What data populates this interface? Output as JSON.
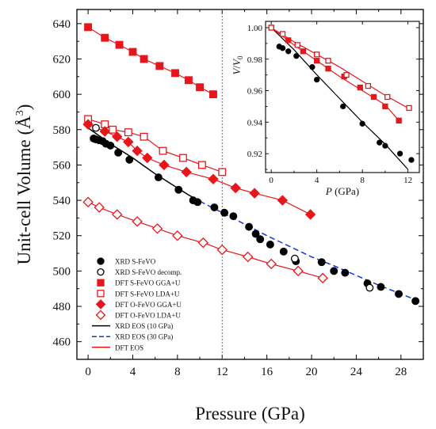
{
  "chart_data": [
    {
      "type": "scatter",
      "title": "",
      "xlabel": "Pressure (GPa)",
      "ylabel_main": "Unit-cell Volume (",
      "ylabel_unit": "Å",
      "ylabel_sup": "3",
      "ylabel_close": ")",
      "xlim": [
        -1,
        30
      ],
      "ylim": [
        450,
        648
      ],
      "xticks": [
        0,
        4,
        8,
        12,
        16,
        20,
        24,
        28
      ],
      "yticks": [
        460,
        480,
        500,
        520,
        540,
        560,
        580,
        600,
        620,
        640
      ],
      "vline_x": 12,
      "grid": false,
      "legend_position": "bottom-left",
      "series": [
        {
          "name": "XRD S-FeVO",
          "marker": "circle-filled",
          "color": "#000000",
          "points": [
            [
              0.5,
              575
            ],
            [
              0.7,
              574.5
            ],
            [
              1.0,
              574
            ],
            [
              1.3,
              573.5
            ],
            [
              1.6,
              572
            ],
            [
              2,
              571
            ],
            [
              2.7,
              567
            ],
            [
              3.7,
              563
            ],
            [
              6.3,
              553
            ],
            [
              8.1,
              546
            ],
            [
              9.4,
              540
            ],
            [
              9.8,
              539
            ],
            [
              11.3,
              536
            ],
            [
              12.2,
              533
            ],
            [
              13,
              531
            ],
            [
              14.4,
              525
            ],
            [
              15,
              521
            ],
            [
              15.4,
              518
            ],
            [
              16.3,
              515
            ],
            [
              17.5,
              511
            ],
            [
              18.6,
              505.5
            ],
            [
              20.9,
              505
            ],
            [
              22,
              500
            ],
            [
              23,
              499
            ],
            [
              25,
              493
            ],
            [
              26.2,
              491
            ],
            [
              27.8,
              487
            ],
            [
              29.3,
              483
            ]
          ]
        },
        {
          "name": "XRD S-FeVO decomp.",
          "marker": "circle-open",
          "color": "#000000",
          "points": [
            [
              0.7,
              581
            ],
            [
              18.5,
              507
            ],
            [
              25.2,
              490.5
            ]
          ]
        },
        {
          "name": "DFT S-FeVO GGA+U",
          "marker": "square-filled",
          "color": "#e8161a",
          "points": [
            [
              0,
              638
            ],
            [
              1.5,
              632
            ],
            [
              2.8,
              628
            ],
            [
              4,
              624
            ],
            [
              5,
              620
            ],
            [
              6.4,
              616
            ],
            [
              7.8,
              612
            ],
            [
              9,
              608
            ],
            [
              10,
              604
            ],
            [
              11.2,
              600
            ]
          ]
        },
        {
          "name": "DFT S-FeVO LDA+U",
          "marker": "square-open",
          "color": "#e8161a",
          "points": [
            [
              0,
              586
            ],
            [
              1.5,
              583
            ],
            [
              2.2,
              580
            ],
            [
              3.6,
              578.5
            ],
            [
              5,
              576
            ],
            [
              6.7,
              568
            ],
            [
              8.5,
              564
            ],
            [
              10.2,
              560
            ],
            [
              12,
              556
            ]
          ]
        },
        {
          "name": "DFT O-FeVO GGA+U",
          "marker": "diamond-filled",
          "color": "#e8161a",
          "points": [
            [
              0,
              583
            ],
            [
              1.5,
              579
            ],
            [
              2.6,
              576
            ],
            [
              3.6,
              573
            ],
            [
              4.4,
              568
            ],
            [
              5.3,
              564
            ],
            [
              6.8,
              560
            ],
            [
              8.8,
              556
            ],
            [
              11.2,
              552
            ],
            [
              13.2,
              547
            ],
            [
              14.9,
              544
            ],
            [
              17.4,
              540
            ],
            [
              19.9,
              532
            ]
          ]
        },
        {
          "name": "DFT O-FeVO LDA+U",
          "marker": "diamond-open",
          "color": "#e8161a",
          "points": [
            [
              0,
              539
            ],
            [
              1,
              536
            ],
            [
              2.6,
              532
            ],
            [
              4.4,
              528
            ],
            [
              6.2,
              524
            ],
            [
              8,
              520
            ],
            [
              10.3,
              516
            ],
            [
              12,
              512
            ],
            [
              14.3,
              508
            ],
            [
              16.4,
              504
            ],
            [
              18.8,
              500
            ],
            [
              21,
              496
            ]
          ]
        }
      ],
      "lines": [
        {
          "name": "XRD EOS (10 GPa)",
          "style": "solid",
          "color": "#000000",
          "points": [
            [
              0,
              581
            ],
            [
              1,
              576.5
            ],
            [
              2,
              572
            ],
            [
              3,
              568
            ],
            [
              4,
              564
            ],
            [
              5,
              559.5
            ],
            [
              6,
              555
            ],
            [
              7,
              551
            ],
            [
              8,
              547
            ],
            [
              9,
              543
            ],
            [
              10,
              539.5
            ]
          ]
        },
        {
          "name": "XRD EOS (30 GPa)",
          "style": "dashed",
          "color": "#1537d6",
          "points": [
            [
              10,
              539.5
            ],
            [
              12,
              533
            ],
            [
              14,
              526.5
            ],
            [
              16,
              520
            ],
            [
              18,
              514
            ],
            [
              20,
              508
            ],
            [
              22,
              503
            ],
            [
              24,
              497.5
            ],
            [
              26,
              492
            ],
            [
              28,
              487
            ],
            [
              29.6,
              483
            ]
          ]
        },
        {
          "name": "DFT EOS",
          "style": "solid",
          "color": "#e8161a",
          "points": []
        }
      ]
    },
    {
      "type": "scatter",
      "title": "",
      "xlabel_italic": "P",
      "xlabel_unit": " (GPa)",
      "ylabel_italic": "V",
      "ylabel_slash": "/",
      "ylabel_italic2": "V",
      "ylabel_sub": "0",
      "xlim": [
        -0.5,
        13
      ],
      "ylim": [
        0.908,
        1.004
      ],
      "xticks": [
        0,
        4,
        8,
        12
      ],
      "yticks": [
        0.92,
        0.94,
        0.96,
        0.98,
        1.0
      ],
      "ytick_labels": [
        "0.92",
        "0.94",
        "0.96",
        "0.98",
        "1.00"
      ],
      "series": [
        {
          "name": "XRD S-FeVO",
          "marker": "circle-filled",
          "color": "#000000",
          "points": [
            [
              0.7,
              0.988
            ],
            [
              1,
              0.987
            ],
            [
              1.5,
              0.985
            ],
            [
              2.2,
              0.982
            ],
            [
              3.6,
              0.975
            ],
            [
              4,
              0.967
            ],
            [
              6.3,
              0.95
            ],
            [
              8,
              0.939
            ],
            [
              9.5,
              0.927
            ],
            [
              10,
              0.925
            ],
            [
              11.3,
              0.92
            ],
            [
              12.3,
              0.916
            ]
          ]
        },
        {
          "name": "DFT S-FeVO GGA+U",
          "marker": "square-filled",
          "color": "#e8161a",
          "points": [
            [
              0,
              1.0
            ],
            [
              1.5,
              0.992
            ],
            [
              2.8,
              0.985
            ],
            [
              4,
              0.979
            ],
            [
              5,
              0.974
            ],
            [
              6.4,
              0.969
            ],
            [
              7.8,
              0.962
            ],
            [
              9,
              0.956
            ],
            [
              10,
              0.95
            ],
            [
              11.2,
              0.941
            ]
          ]
        },
        {
          "name": "DFT S-FeVO LDA+U",
          "marker": "square-open",
          "color": "#e8161a",
          "points": [
            [
              0,
              1.0
            ],
            [
              1,
              0.996
            ],
            [
              2.3,
              0.989
            ],
            [
              4,
              0.983
            ],
            [
              5,
              0.979
            ],
            [
              6.6,
              0.97
            ],
            [
              8.5,
              0.963
            ],
            [
              10.2,
              0.956
            ],
            [
              12.1,
              0.949
            ]
          ]
        }
      ],
      "lines": [
        {
          "name": "fit XRD",
          "style": "solid",
          "color": "#000000",
          "points": [
            [
              0,
              1.0
            ],
            [
              2,
              0.986
            ],
            [
              4,
              0.97
            ],
            [
              6,
              0.955
            ],
            [
              8,
              0.94
            ],
            [
              10,
              0.926
            ],
            [
              12,
              0.91
            ]
          ]
        },
        {
          "name": "fit GGA",
          "style": "solid",
          "color": "#e8161a",
          "points": [
            [
              0,
              1.0
            ],
            [
              2,
              0.989
            ],
            [
              4,
              0.979
            ],
            [
              6,
              0.969
            ],
            [
              8,
              0.96
            ],
            [
              10,
              0.951
            ],
            [
              11.2,
              0.941
            ]
          ]
        },
        {
          "name": "fit LDA",
          "style": "solid",
          "color": "#e8161a",
          "points": [
            [
              0,
              1.0
            ],
            [
              2,
              0.991
            ],
            [
              4,
              0.983
            ],
            [
              6,
              0.975
            ],
            [
              8,
              0.966
            ],
            [
              10,
              0.957
            ],
            [
              12,
              0.949
            ]
          ]
        }
      ]
    }
  ]
}
